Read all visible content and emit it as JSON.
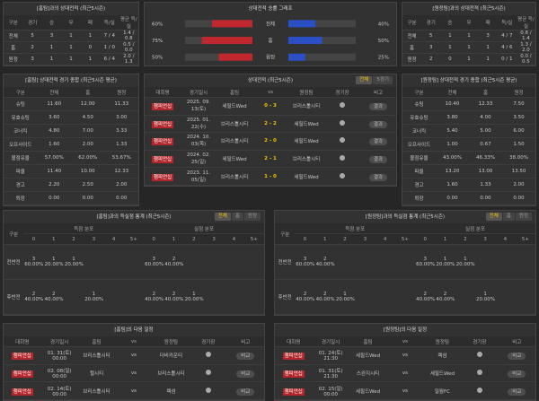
{
  "home_h2h": {
    "title": "[홈팀]과의 상대전적 (최근5시즌)",
    "header": [
      "구분",
      "경기",
      "승",
      "무",
      "패",
      "득/실",
      "평균 득/실"
    ],
    "rows": [
      [
        "전체",
        "5",
        "3",
        "1",
        "1",
        "7 / 4",
        "1.4 / 0.8"
      ],
      [
        "홈",
        "2",
        "1",
        "1",
        "0",
        "1 / 0",
        "0.5 / 0.0"
      ],
      [
        "원정",
        "3",
        "1",
        "1",
        "1",
        "6 / 4",
        "2.0 / 1.3"
      ]
    ]
  },
  "graph": {
    "title": "상대전적 승률 그래프",
    "categories": [
      "전체",
      "홈",
      "원정"
    ],
    "xlim": [
      0,
      100
    ],
    "home": {
      "color": "#c0282d",
      "values": [
        60,
        75,
        50
      ],
      "value_labels": [
        "60%",
        "75%",
        "50%"
      ]
    },
    "away": {
      "color": "#2b4fc4",
      "values": [
        40,
        50,
        25
      ],
      "value_labels": [
        "40%",
        "50%",
        "25%"
      ]
    }
  },
  "away_h2h": {
    "title": "[원정팀]과의 상대전적 (최근5시즌)",
    "header": [
      "구분",
      "경기",
      "승",
      "무",
      "패",
      "득/실",
      "평균 득/실"
    ],
    "rows": [
      [
        "전체",
        "5",
        "1",
        "1",
        "3",
        "4 / 7",
        "0.8 / 1.4"
      ],
      [
        "홈",
        "3",
        "1",
        "1",
        "1",
        "4 / 6",
        "1.3 / 2.0"
      ],
      [
        "원정",
        "2",
        "0",
        "1",
        "1",
        "0 / 1",
        "0.0 / 0.5"
      ]
    ]
  },
  "home_stats": {
    "title": "[홈팀] 상대전적 경기 종합 (최근5시즌 평균)",
    "header": [
      "구분",
      "전체",
      "홈",
      "원정"
    ],
    "rows": [
      [
        "슈팅",
        "11.60",
        "12.00",
        "11.33"
      ],
      [
        "유효슈팅",
        "3.60",
        "4.50",
        "3.00"
      ],
      [
        "코너킥",
        "4.80",
        "7.00",
        "3.33"
      ],
      [
        "오프사이드",
        "1.60",
        "2.00",
        "1.33"
      ],
      [
        "볼점유율",
        "57.00%",
        "62.00%",
        "53.67%"
      ],
      [
        "파울",
        "11.40",
        "10.00",
        "12.33"
      ],
      [
        "경고",
        "2.20",
        "2.50",
        "2.00"
      ],
      [
        "퇴장",
        "0.00",
        "0.00",
        "0.00"
      ]
    ]
  },
  "matches": {
    "title": "상대전적 (최근5시즌)",
    "tabs": [
      "전체",
      "5경기"
    ],
    "header": [
      "대회명",
      "경기일시",
      "홈팀",
      "vs",
      "원정팀",
      "경기장",
      "비고"
    ],
    "rows": [
      [
        "챔피언십",
        "2025. 09. 13(토)",
        "세필드Wed",
        "0 - 3",
        "브리스톨시티",
        "결과"
      ],
      [
        "챔피언십",
        "2025. 01. 22(수)",
        "브리스톨시티",
        "2 - 2",
        "세필드Wed",
        "결과"
      ],
      [
        "챔피언십",
        "2024. 10. 03(목)",
        "브리스톨시티",
        "2 - 0",
        "세필드Wed",
        "결과"
      ],
      [
        "챔피언십",
        "2024. 02. 25(일)",
        "세필드Wed",
        "2 - 1",
        "브리스톨시티",
        "결과"
      ],
      [
        "챔피언십",
        "2023. 11. 05(일)",
        "브리스톨시티",
        "1 - 0",
        "세필드Wed",
        "결과"
      ]
    ]
  },
  "away_stats": {
    "title": "[원정팀] 상대전적 경기 종합 (최근5시즌 평균)",
    "header": [
      "구분",
      "전체",
      "홈",
      "원정"
    ],
    "rows": [
      [
        "슈팅",
        "10.40",
        "12.33",
        "7.50"
      ],
      [
        "유효슈팅",
        "3.80",
        "4.00",
        "3.50"
      ],
      [
        "코너킥",
        "5.40",
        "5.00",
        "6.00"
      ],
      [
        "오프사이드",
        "1.00",
        "0.67",
        "1.50"
      ],
      [
        "볼점유율",
        "43.00%",
        "46.33%",
        "38.00%"
      ],
      [
        "파울",
        "13.20",
        "13.00",
        "13.50"
      ],
      [
        "경고",
        "1.60",
        "1.33",
        "2.00"
      ],
      [
        "퇴장",
        "0.00",
        "0.00",
        "0.00"
      ]
    ]
  },
  "home_goals": {
    "title": "[홈팀]과의 득실점 통계 (최근5시즌)",
    "tabs": [
      "전체",
      "홈",
      "원정"
    ],
    "groups": [
      "구분",
      "득점 분포",
      "실점 분포"
    ],
    "header": [
      "0",
      "1",
      "2",
      "3",
      "4",
      "5+",
      "0",
      "1",
      "2",
      "3",
      "4",
      "5+"
    ],
    "rows": [
      [
        "전반전",
        "3\n60.00%",
        "1\n20.00%",
        "1\n20.00%",
        null,
        null,
        null,
        "3\n60.00%",
        "2\n40.00%",
        null,
        null,
        null,
        null
      ],
      [
        "후반전",
        "2\n40.00%",
        "2\n40.00%",
        null,
        "1\n20.00%",
        null,
        null,
        "2\n40.00%",
        "2\n40.00%",
        "1\n20.00%",
        null,
        null,
        null
      ]
    ]
  },
  "away_goals": {
    "title": "[원정팀]과의 득실점 통계 (최근5시즌)",
    "tabs": [
      "전체",
      "홈",
      "원정"
    ],
    "groups": [
      "구분",
      "득점 분포",
      "실점 분포"
    ],
    "header": [
      "0",
      "1",
      "2",
      "3",
      "4",
      "5+",
      "0",
      "1",
      "2",
      "3",
      "4",
      "5+"
    ],
    "rows": [
      [
        "전반전",
        "3\n60.00%",
        "2\n40.00%",
        null,
        null,
        null,
        null,
        "3\n60.00%",
        "1\n20.00%",
        "1\n20.00%",
        null,
        null,
        null
      ],
      [
        "후반전",
        "2\n40.00%",
        "2\n40.00%",
        "1\n20.00%",
        null,
        null,
        null,
        "2\n40.00%",
        "2\n40.00%",
        null,
        "1\n20.00%",
        null,
        null
      ]
    ]
  },
  "home_next": {
    "title": "[홈팀]의 다음 일정",
    "header": [
      "대회명",
      "경기일시",
      "홈팀",
      "vs",
      "원정팀",
      "경기장",
      "비고"
    ],
    "rows": [
      [
        "챔피언십",
        "01. 31(토) 00:00",
        "브리스톨시티",
        "vs",
        "더비카운티",
        "비교"
      ],
      [
        "챔피언십",
        "02. 08(일) 00:00",
        "헐시티",
        "vs",
        "브리스톨시티",
        "비교"
      ],
      [
        "챔피언십",
        "02. 14(토) 00:00",
        "브리스톨시티",
        "vs",
        "렉섬",
        "비교"
      ]
    ]
  },
  "away_next": {
    "title": "[원정팀]의 다음 일정",
    "header": [
      "대회명",
      "경기일시",
      "홈팀",
      "vs",
      "원정팀",
      "경기장",
      "비고"
    ],
    "rows": [
      [
        "챔피언십",
        "01. 24(토) 21:30",
        "세필드Wed",
        "vs",
        "렉섬",
        "비교"
      ],
      [
        "챔피언십",
        "01. 31(토) 21:30",
        "스완지시티",
        "vs",
        "세필드Wed",
        "비교"
      ],
      [
        "챔피언십",
        "02. 15(일) 00:00",
        "세필드Wed",
        "vs",
        "밀월FC",
        "비교"
      ]
    ]
  }
}
